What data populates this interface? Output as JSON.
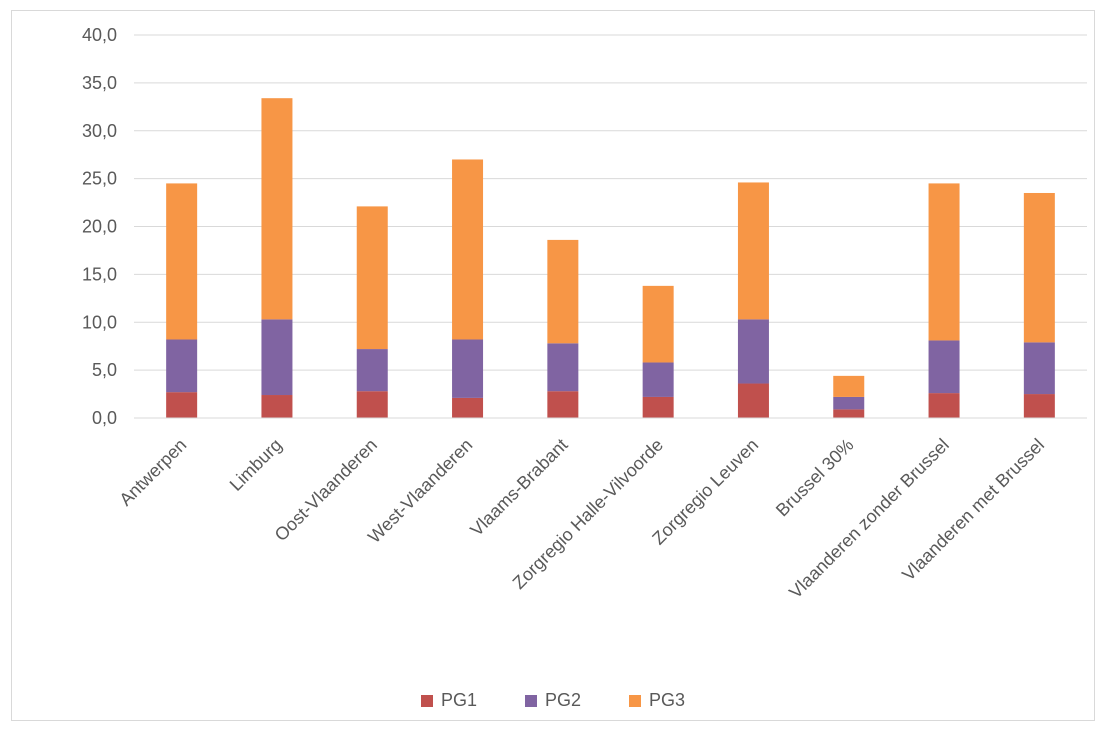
{
  "chart_data": {
    "type": "bar",
    "stacked": true,
    "categories": [
      "Antwerpen",
      "Limburg",
      "Oost-Vlaanderen",
      "West-Vlaanderen",
      "Vlaams-Brabant",
      "Zorgregio Halle-Vilvoorde",
      "Zorgregio Leuven",
      "Brussel 30%",
      "Vlaanderen zonder Brussel",
      "Vlaanderen met Brussel"
    ],
    "series": [
      {
        "name": "PG1",
        "color": "#c0504d",
        "values": [
          2.7,
          2.4,
          2.8,
          2.1,
          2.8,
          2.2,
          3.6,
          0.9,
          2.6,
          2.5
        ]
      },
      {
        "name": "PG2",
        "color": "#8064a2",
        "values": [
          5.5,
          7.9,
          4.4,
          6.1,
          5.0,
          3.6,
          6.7,
          1.3,
          5.5,
          5.4
        ]
      },
      {
        "name": "PG3",
        "color": "#f79646",
        "values": [
          16.3,
          23.1,
          14.9,
          18.8,
          10.8,
          8.0,
          14.3,
          2.2,
          16.4,
          15.6
        ]
      }
    ],
    "ylim": [
      0,
      40
    ],
    "yticks": [
      "0,0",
      "5,0",
      "10,0",
      "15,0",
      "20,0",
      "25,0",
      "30,0",
      "35,0",
      "40,0"
    ],
    "grid": true,
    "legend_position": "bottom",
    "title": "",
    "xlabel": "",
    "ylabel": ""
  }
}
